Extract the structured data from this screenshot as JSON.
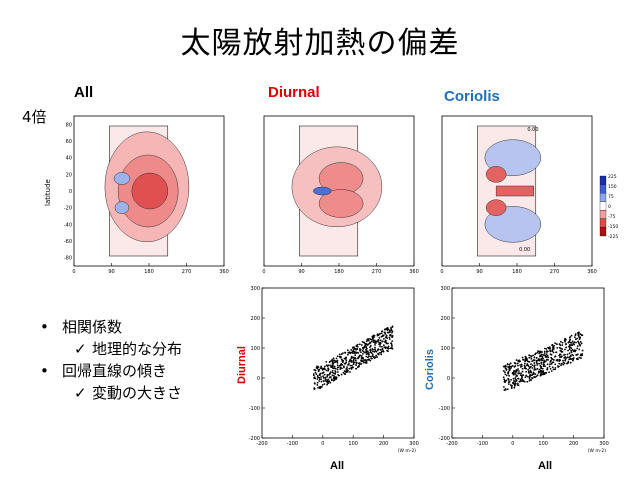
{
  "slide": {
    "title": "太陽放射加熱の偏差",
    "factor_label": "4倍",
    "column_headers": [
      {
        "label": "All",
        "color": "#000000"
      },
      {
        "label": "Diurnal",
        "color": "#e00000"
      },
      {
        "label": "Coriolis",
        "color": "#1f6fbf"
      }
    ],
    "bullets": [
      {
        "text": "相関係数",
        "children": [
          "地理的な分布"
        ]
      },
      {
        "text": "回帰直線の傾き",
        "children": [
          "変動の大きさ"
        ]
      }
    ],
    "map_ylabel": "latitude",
    "scatter_xlabel": "All",
    "scatter_ylabels": [
      {
        "label": "Diurnal",
        "color": "#e00000"
      },
      {
        "label": "Coriolis",
        "color": "#1f6fbf"
      }
    ],
    "scatter_unit": "(W m-2)",
    "contour_tag": "0.00",
    "colorbar_ticks": [
      "225",
      "150",
      "75",
      "0",
      "-75",
      "-150",
      "-225"
    ]
  },
  "chart_data": [
    {
      "type": "heatmap",
      "name": "All",
      "x_ticks": [
        "0",
        "90",
        "180",
        "270",
        "360"
      ],
      "y_ticks": [
        "80",
        "60",
        "40",
        "20",
        "0",
        "-20",
        "-40",
        "-60",
        "-80"
      ],
      "xlim": [
        0,
        360
      ],
      "ylim": [
        -90,
        90
      ]
    },
    {
      "type": "heatmap",
      "name": "Diurnal",
      "x_ticks": [
        "0",
        "90",
        "180",
        "270",
        "360"
      ],
      "xlim": [
        0,
        360
      ],
      "ylim": [
        -90,
        90
      ]
    },
    {
      "type": "heatmap",
      "name": "Coriolis",
      "x_ticks": [
        "0",
        "90",
        "180",
        "270",
        "360"
      ],
      "xlim": [
        0,
        360
      ],
      "ylim": [
        -90,
        90
      ],
      "colorbar": [
        -225,
        225
      ]
    },
    {
      "type": "scatter",
      "xlabel": "All",
      "ylabel": "Diurnal",
      "xlim": [
        -200,
        300
      ],
      "ylim": [
        -200,
        300
      ],
      "x_ticks": [
        "-200",
        "-100",
        "0",
        "100",
        "200",
        "300"
      ],
      "y_ticks": [
        "300",
        "200",
        "100",
        "0",
        "-100",
        "-200"
      ]
    },
    {
      "type": "scatter",
      "xlabel": "All",
      "ylabel": "Coriolis",
      "xlim": [
        -200,
        300
      ],
      "ylim": [
        -200,
        300
      ],
      "x_ticks": [
        "-200",
        "-100",
        "0",
        "100",
        "200",
        "300"
      ],
      "y_ticks": [
        "300",
        "200",
        "100",
        "0",
        "-100",
        "-200"
      ]
    }
  ]
}
